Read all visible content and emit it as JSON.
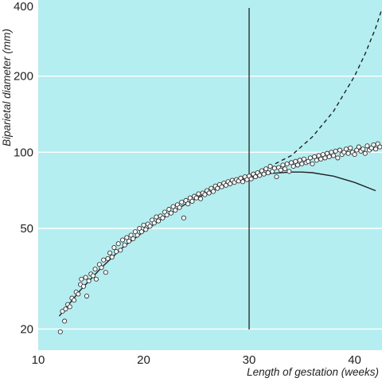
{
  "chart_data": {
    "type": "scatter",
    "title": "",
    "xlabel": "Length of gestation (weeks)",
    "ylabel": "Biparietal diameter (mm)",
    "xlim": [
      10,
      42.6
    ],
    "ylim": [
      16.5,
      400
    ],
    "y_scale": "log",
    "x_ticks": [
      10,
      20,
      30,
      40
    ],
    "y_ticks": [
      20,
      50,
      100,
      200,
      400
    ],
    "grid": "horizontal",
    "reference_line_x": 30,
    "colors": {
      "background": "#b4eef0",
      "grid": "#ffffff",
      "marker_stroke": "#333333",
      "marker_fill": "#ffffff",
      "line": "#222222"
    },
    "series": [
      {
        "style": "markers",
        "points": [
          [
            12.1,
            19.5
          ],
          [
            12.3,
            23.5
          ],
          [
            12.5,
            21.5
          ],
          [
            12.6,
            24.0
          ],
          [
            12.8,
            25.0
          ],
          [
            13.0,
            24.5
          ],
          [
            13.2,
            26.5
          ],
          [
            13.4,
            26.0
          ],
          [
            13.6,
            28.0
          ],
          [
            13.8,
            27.5
          ],
          [
            14.0,
            30.0
          ],
          [
            14.1,
            31.5
          ],
          [
            14.3,
            29.5
          ],
          [
            14.5,
            32.0
          ],
          [
            14.6,
            27.0
          ],
          [
            14.8,
            31.0
          ],
          [
            15.0,
            33.0
          ],
          [
            15.2,
            32.5
          ],
          [
            15.4,
            34.5
          ],
          [
            15.5,
            31.5
          ],
          [
            15.8,
            36.0
          ],
          [
            16.0,
            35.0
          ],
          [
            16.2,
            37.5
          ],
          [
            16.4,
            33.5
          ],
          [
            16.6,
            38.0
          ],
          [
            16.8,
            40.0
          ],
          [
            17.0,
            38.5
          ],
          [
            17.2,
            42.0
          ],
          [
            17.4,
            40.5
          ],
          [
            17.6,
            43.5
          ],
          [
            17.8,
            41.0
          ],
          [
            18.0,
            45.0
          ],
          [
            18.2,
            43.0
          ],
          [
            18.4,
            46.0
          ],
          [
            18.6,
            44.5
          ],
          [
            18.8,
            47.0
          ],
          [
            19.0,
            45.5
          ],
          [
            19.2,
            48.5
          ],
          [
            19.4,
            47.0
          ],
          [
            19.6,
            50.0
          ],
          [
            19.8,
            48.5
          ],
          [
            20.0,
            51.5
          ],
          [
            20.2,
            49.5
          ],
          [
            20.4,
            52.0
          ],
          [
            20.6,
            51.0
          ],
          [
            20.8,
            54.0
          ],
          [
            21.0,
            52.5
          ],
          [
            21.2,
            55.5
          ],
          [
            21.4,
            53.5
          ],
          [
            21.6,
            56.0
          ],
          [
            21.8,
            55.0
          ],
          [
            22.0,
            58.0
          ],
          [
            22.2,
            56.5
          ],
          [
            22.4,
            59.5
          ],
          [
            22.6,
            57.5
          ],
          [
            22.8,
            61.0
          ],
          [
            23.0,
            59.0
          ],
          [
            23.2,
            62.0
          ],
          [
            23.4,
            60.5
          ],
          [
            23.6,
            63.5
          ],
          [
            23.8,
            55.0
          ],
          [
            24.0,
            64.5
          ],
          [
            24.2,
            62.5
          ],
          [
            24.4,
            66.0
          ],
          [
            24.6,
            64.0
          ],
          [
            24.8,
            67.0
          ],
          [
            25.0,
            66.0
          ],
          [
            25.2,
            68.5
          ],
          [
            25.4,
            65.5
          ],
          [
            25.6,
            69.0
          ],
          [
            25.8,
            68.0
          ],
          [
            26.0,
            70.5
          ],
          [
            26.2,
            69.0
          ],
          [
            26.4,
            72.0
          ],
          [
            26.6,
            70.0
          ],
          [
            26.8,
            73.5
          ],
          [
            27.0,
            72.0
          ],
          [
            27.2,
            74.5
          ],
          [
            27.4,
            73.0
          ],
          [
            27.6,
            75.5
          ],
          [
            27.8,
            74.0
          ],
          [
            28.0,
            76.5
          ],
          [
            28.2,
            75.0
          ],
          [
            28.4,
            77.5
          ],
          [
            28.6,
            76.0
          ],
          [
            28.8,
            78.0
          ],
          [
            29.0,
            77.0
          ],
          [
            29.2,
            79.0
          ],
          [
            29.4,
            76.5
          ],
          [
            29.6,
            80.0
          ],
          [
            29.8,
            78.0
          ],
          [
            30.0,
            80.5
          ],
          [
            30.2,
            78.5
          ],
          [
            30.4,
            82.0
          ],
          [
            30.6,
            80.0
          ],
          [
            30.8,
            83.0
          ],
          [
            31.0,
            81.0
          ],
          [
            31.2,
            84.5
          ],
          [
            31.4,
            82.0
          ],
          [
            31.6,
            86.0
          ],
          [
            31.8,
            83.0
          ],
          [
            32.0,
            88.0
          ],
          [
            32.2,
            84.0
          ],
          [
            32.4,
            86.5
          ],
          [
            32.6,
            80.0
          ],
          [
            32.8,
            87.0
          ],
          [
            33.0,
            85.0
          ],
          [
            33.2,
            89.0
          ],
          [
            33.4,
            86.0
          ],
          [
            33.6,
            90.0
          ],
          [
            33.8,
            84.0
          ],
          [
            34.0,
            91.0
          ],
          [
            34.2,
            88.0
          ],
          [
            34.4,
            92.0
          ],
          [
            34.6,
            89.0
          ],
          [
            34.8,
            93.0
          ],
          [
            35.0,
            90.0
          ],
          [
            35.2,
            94.0
          ],
          [
            35.4,
            91.0
          ],
          [
            35.6,
            92.0
          ],
          [
            35.8,
            95.0
          ],
          [
            36.0,
            90.0
          ],
          [
            36.2,
            96.0
          ],
          [
            36.4,
            93.0
          ],
          [
            36.6,
            97.0
          ],
          [
            36.8,
            94.0
          ],
          [
            37.0,
            98.0
          ],
          [
            37.2,
            95.0
          ],
          [
            37.4,
            99.0
          ],
          [
            37.6,
            96.0
          ],
          [
            37.8,
            100.0
          ],
          [
            38.0,
            97.0
          ],
          [
            38.2,
            101.0
          ],
          [
            38.4,
            95.0
          ],
          [
            38.6,
            102.0
          ],
          [
            38.8,
            98.0
          ],
          [
            39.0,
            100.0
          ],
          [
            39.2,
            103.0
          ],
          [
            39.4,
            99.0
          ],
          [
            39.6,
            104.0
          ],
          [
            39.8,
            100.0
          ],
          [
            40.0,
            98.0
          ],
          [
            40.2,
            102.0
          ],
          [
            40.4,
            105.0
          ],
          [
            40.6,
            101.0
          ],
          [
            40.8,
            103.0
          ],
          [
            41.0,
            99.0
          ],
          [
            41.2,
            106.0
          ],
          [
            41.4,
            102.0
          ],
          [
            41.6,
            104.0
          ],
          [
            41.8,
            107.0
          ],
          [
            42.0,
            103.0
          ],
          [
            42.2,
            108.0
          ],
          [
            42.4,
            105.0
          ]
        ]
      },
      {
        "style": "solid",
        "x": [
          12.0,
          14.0,
          16.0,
          18.0,
          20.0,
          22.0,
          24.0,
          26.0,
          28.0,
          30.0,
          32.0,
          34.0,
          35.0,
          36.0,
          38.0,
          40.0,
          42.0
        ],
        "values": [
          22.5,
          28.5,
          35.0,
          42.0,
          48.5,
          55.5,
          62.5,
          69.0,
          75.0,
          79.5,
          82.5,
          83.5,
          83.5,
          83.0,
          80.5,
          76.0,
          70.5
        ]
      },
      {
        "style": "dashed",
        "x": [
          30.0,
          32.0,
          34.0,
          36.0,
          38.0,
          40.0,
          41.0,
          42.0,
          42.6
        ],
        "values": [
          81.0,
          88.0,
          97.0,
          115.0,
          145.0,
          200.0,
          245.0,
          310.0,
          370.0
        ]
      }
    ]
  }
}
